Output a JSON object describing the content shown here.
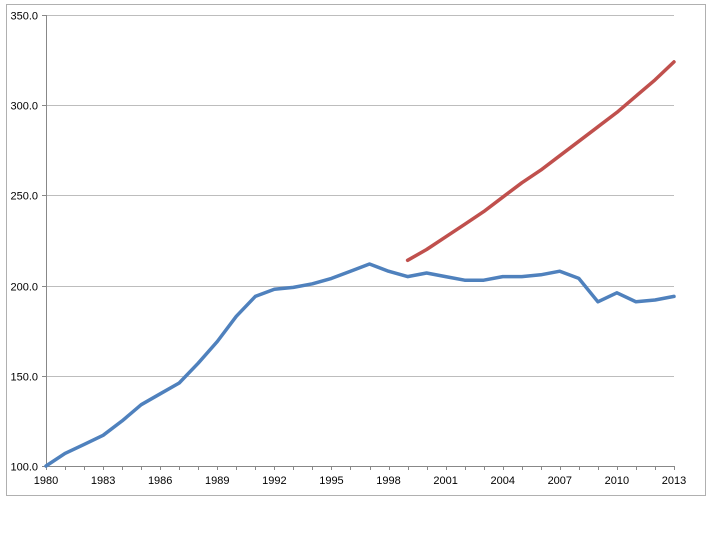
{
  "chart_data": {
    "type": "line",
    "title": "",
    "xlabel": "",
    "ylabel": "",
    "xlim": [
      1980,
      2013
    ],
    "ylim": [
      100,
      350
    ],
    "x_ticks": [
      1980,
      1983,
      1986,
      1989,
      1992,
      1995,
      1998,
      2001,
      2004,
      2007,
      2010,
      2013
    ],
    "x_tick_labels": [
      "1980",
      "1983",
      "1986",
      "1989",
      "1992",
      "1995",
      "1998",
      "2001",
      "2004",
      "2007",
      "2010",
      "2013"
    ],
    "y_ticks": [
      100,
      150,
      200,
      250,
      300,
      350
    ],
    "y_tick_labels": [
      "100.0",
      "150.0",
      "200.0",
      "250.0",
      "300.0",
      "350.0"
    ],
    "grid": {
      "horizontal": true,
      "vertical": false
    },
    "legend": "none",
    "series": [
      {
        "color": "#4f81bd",
        "points": [
          [
            1980,
            100
          ],
          [
            1981,
            107
          ],
          [
            1982,
            112
          ],
          [
            1983,
            117
          ],
          [
            1984,
            125
          ],
          [
            1985,
            134
          ],
          [
            1986,
            140
          ],
          [
            1987,
            146
          ],
          [
            1988,
            157
          ],
          [
            1989,
            169
          ],
          [
            1990,
            183
          ],
          [
            1991,
            194
          ],
          [
            1992,
            198
          ],
          [
            1993,
            199
          ],
          [
            1994,
            201
          ],
          [
            1995,
            204
          ],
          [
            1996,
            208
          ],
          [
            1997,
            212
          ],
          [
            1998,
            208
          ],
          [
            1999,
            205
          ],
          [
            2000,
            207
          ],
          [
            2001,
            205
          ],
          [
            2002,
            203
          ],
          [
            2003,
            203
          ],
          [
            2004,
            205
          ],
          [
            2005,
            205
          ],
          [
            2006,
            206
          ],
          [
            2007,
            208
          ],
          [
            2008,
            204
          ],
          [
            2009,
            191
          ],
          [
            2010,
            196
          ],
          [
            2011,
            191
          ],
          [
            2012,
            192
          ],
          [
            2013,
            194
          ]
        ]
      },
      {
        "color": "#c0504d",
        "points": [
          [
            1999,
            214
          ],
          [
            2000,
            220
          ],
          [
            2001,
            227
          ],
          [
            2002,
            234
          ],
          [
            2003,
            241
          ],
          [
            2004,
            249
          ],
          [
            2005,
            257
          ],
          [
            2006,
            264
          ],
          [
            2007,
            272
          ],
          [
            2008,
            280
          ],
          [
            2009,
            288
          ],
          [
            2010,
            296
          ],
          [
            2011,
            305
          ],
          [
            2012,
            314
          ],
          [
            2013,
            324
          ]
        ]
      }
    ]
  },
  "colors": {
    "border": "#b0b0b0",
    "grid": "#bdbdbd",
    "axis": "#888888"
  }
}
